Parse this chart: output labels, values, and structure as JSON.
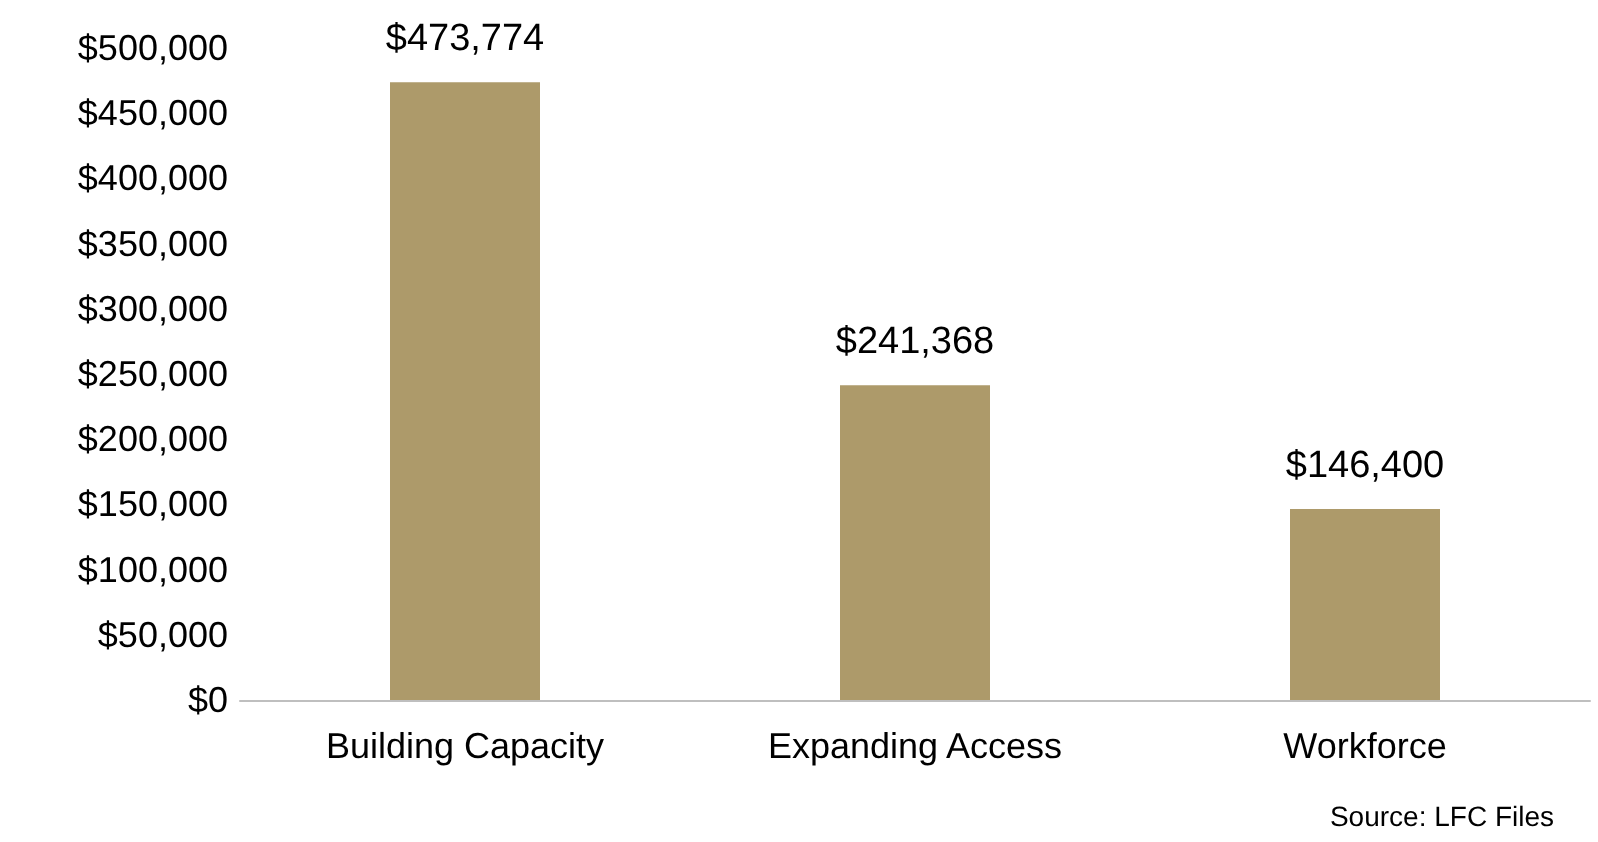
{
  "chart_data": {
    "type": "bar",
    "categories": [
      "Building Capacity",
      "Expanding Access",
      "Workforce"
    ],
    "values": [
      473774,
      241368,
      146400
    ],
    "value_labels": [
      "$473,774",
      "$241,368",
      "$146,400"
    ],
    "color": "#ad9a6a",
    "ylim": [
      0,
      500000
    ],
    "yticks": [
      {
        "value": 0,
        "label": "$0"
      },
      {
        "value": 50000,
        "label": "$50,000"
      },
      {
        "value": 100000,
        "label": "$100,000"
      },
      {
        "value": 150000,
        "label": "$150,000"
      },
      {
        "value": 200000,
        "label": "$200,000"
      },
      {
        "value": 250000,
        "label": "$250,000"
      },
      {
        "value": 300000,
        "label": "$300,000"
      },
      {
        "value": 350000,
        "label": "$350,000"
      },
      {
        "value": 400000,
        "label": "$400,000"
      },
      {
        "value": 450000,
        "label": "$450,000"
      },
      {
        "value": 500000,
        "label": "$500,000"
      }
    ],
    "grid": false,
    "annotations": [
      "Source: LFC Files"
    ]
  }
}
